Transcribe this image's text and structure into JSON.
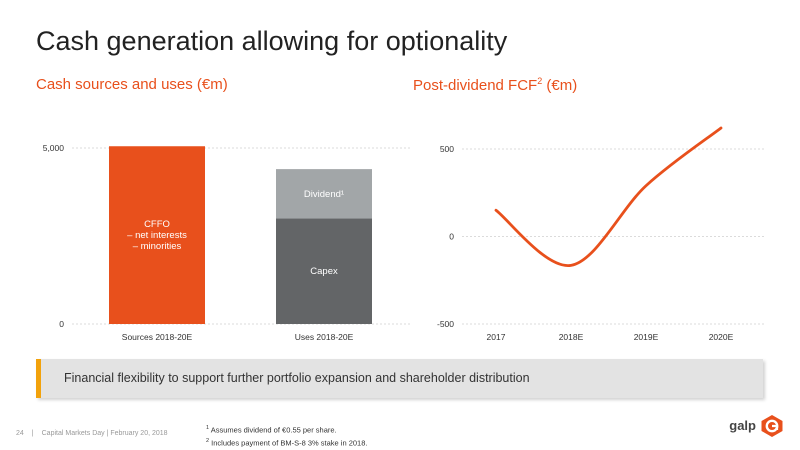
{
  "title": "Cash generation allowing for optionality",
  "accent_color": "#e8501c",
  "chart_data": [
    {
      "type": "bar",
      "title": "Cash sources and uses (€m)",
      "stacked": true,
      "categories": [
        "Sources 2018-20E",
        "Uses 2018-20E"
      ],
      "series": [
        {
          "name": "CFFO\n– net interests\n– minorities",
          "values": [
            5050,
            0
          ],
          "color": "#e8501c"
        },
        {
          "name": "Capex",
          "values": [
            0,
            3000
          ],
          "color": "#636567"
        },
        {
          "name": "Dividend¹",
          "values": [
            0,
            1400
          ],
          "color": "#a2a6a8"
        }
      ],
      "ylim": [
        0,
        5000
      ],
      "yticks": [
        "0",
        "5,000"
      ],
      "grid": true,
      "legend": "none"
    },
    {
      "type": "line",
      "title_main": "Post-dividend FCF",
      "title_sup": "2",
      "title_unit": " (€m)",
      "x": [
        "2017",
        "2018E",
        "2019E",
        "2020E"
      ],
      "series": [
        {
          "values": [
            150,
            -165,
            290,
            620
          ],
          "color": "#e8501c"
        }
      ],
      "ylim": [
        -500,
        500
      ],
      "yticks": [
        "-500",
        "0",
        "500"
      ],
      "grid": true,
      "legend": "none"
    }
  ],
  "callout": {
    "text": "Financial flexibility to support further portfolio expansion and shareholder distribution",
    "bar_color": "#f2a20c"
  },
  "footnotes": {
    "n1_marker": "1",
    "n1": "Assumes dividend of €0.55 per share.",
    "n2_marker": "2",
    "n2": "Includes payment of BM-S-8 3% stake in 2018."
  },
  "footer": {
    "page": "24",
    "separator": "|",
    "event": "Capital Markets Day | February 20, 2018"
  },
  "logo": {
    "text": "galp",
    "icon": "galp-logo-icon"
  }
}
